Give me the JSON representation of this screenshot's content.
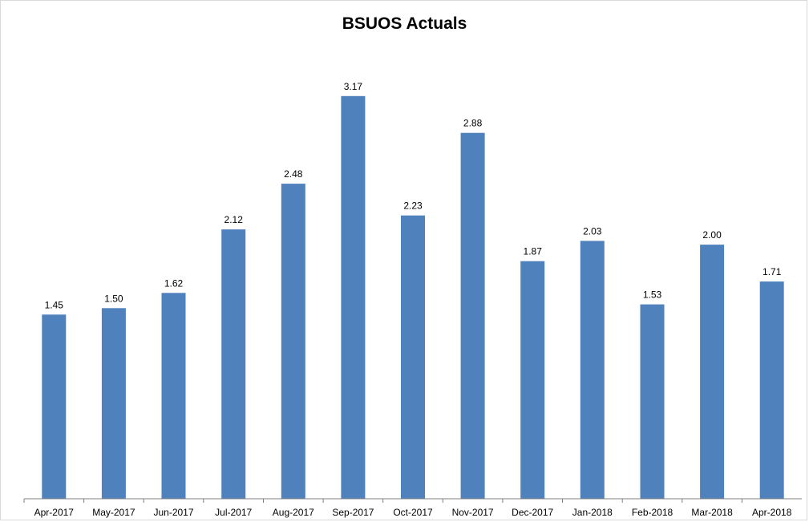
{
  "chart_data": {
    "type": "bar",
    "title": "BSUOS Actuals",
    "xlabel": "",
    "ylabel": "",
    "categories": [
      "Apr-2017",
      "May-2017",
      "Jun-2017",
      "Jul-2017",
      "Aug-2017",
      "Sep-2017",
      "Oct-2017",
      "Nov-2017",
      "Dec-2017",
      "Jan-2018",
      "Feb-2018",
      "Mar-2018",
      "Apr-2018"
    ],
    "values": [
      1.45,
      1.5,
      1.62,
      2.12,
      2.48,
      3.17,
      2.23,
      2.88,
      1.87,
      2.03,
      1.53,
      2.0,
      1.71
    ],
    "value_labels": [
      "1.45",
      "1.50",
      "1.62",
      "2.12",
      "2.48",
      "3.17",
      "2.23",
      "2.88",
      "1.87",
      "2.03",
      "1.53",
      "2.00",
      "1.71"
    ],
    "ylim": [
      0,
      3.2
    ],
    "grid": false,
    "legend": "none",
    "bar_color": "#4f81bd"
  }
}
